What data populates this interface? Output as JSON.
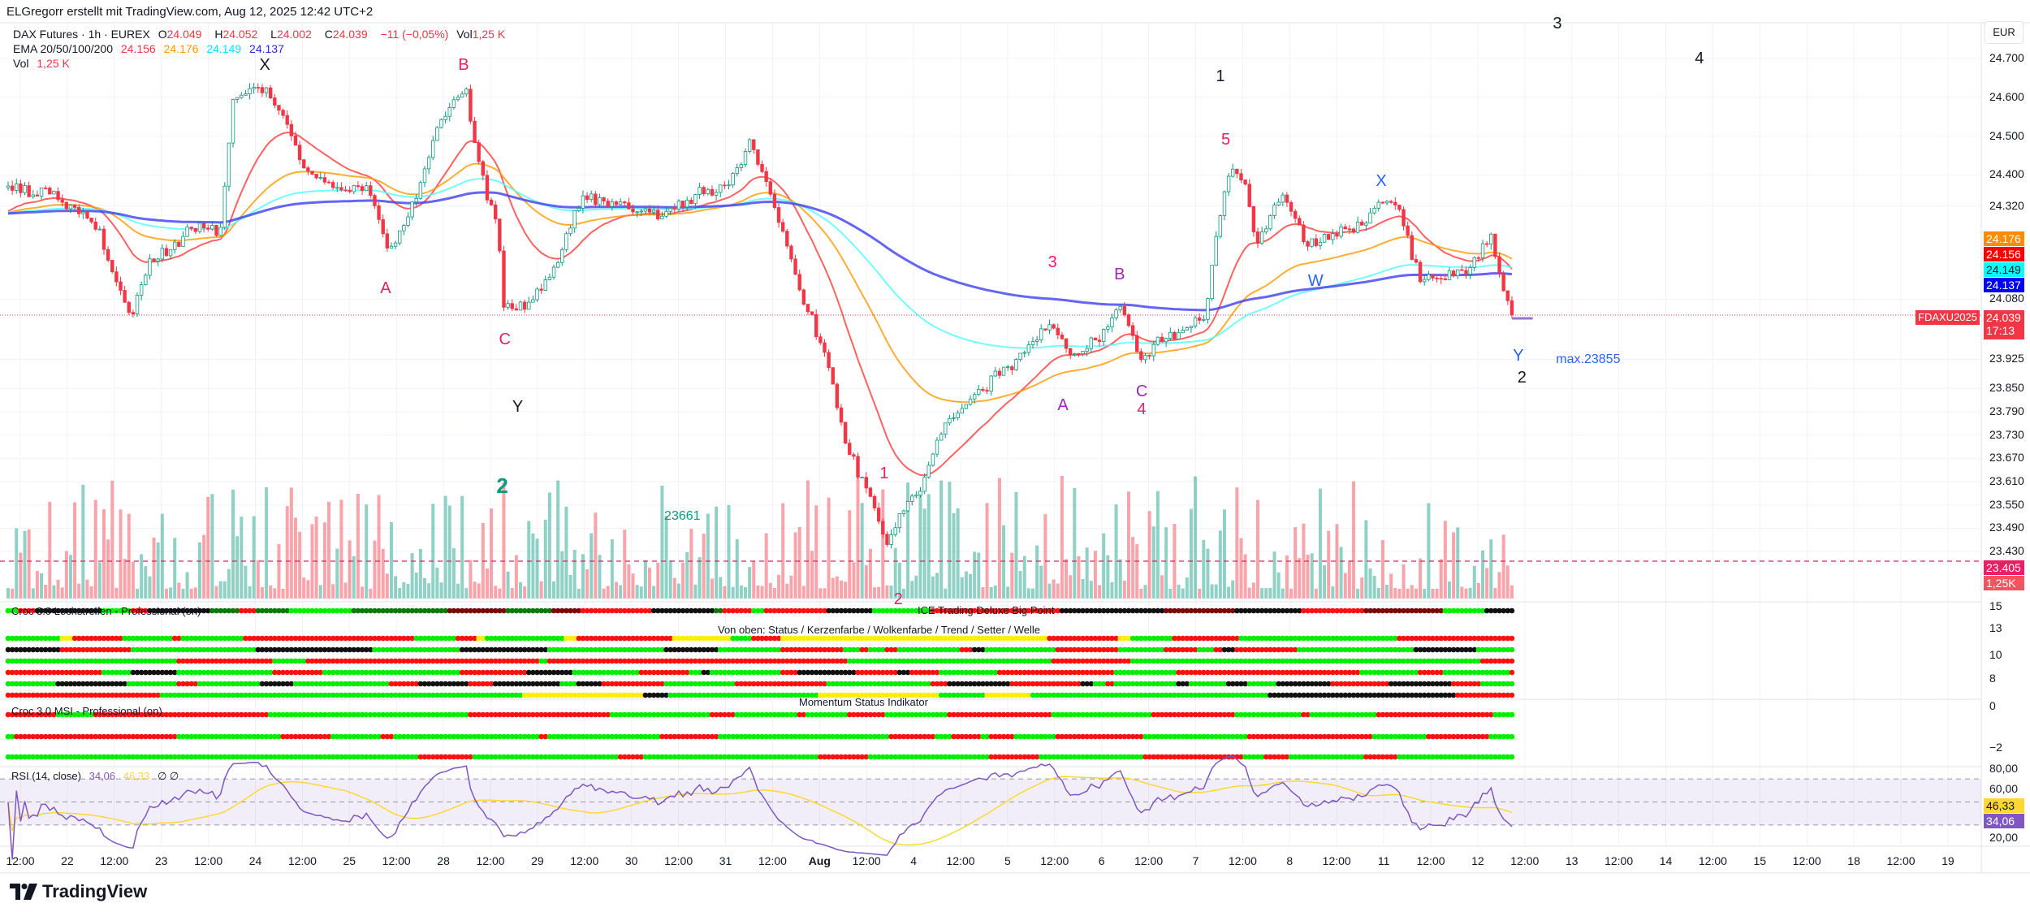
{
  "credit": "ELGregorr erstellt mit TradingView.com, Aug 12, 2025 12:42 UTC+2",
  "legend": {
    "symbol": "DAX Futures · 1h · EUREX",
    "o_label": "O",
    "o": "24.049",
    "h_label": "H",
    "h": "24.052",
    "l_label": "L",
    "l": "24.002",
    "c_label": "C",
    "c": "24.039",
    "change": "−11 (−0,05%)",
    "vol_label": "Vol",
    "vol": "1,25 K",
    "ema_label": "EMA 20/50/100/200",
    "ema_values": [
      "24.156",
      "24.176",
      "24.149",
      "24.137"
    ],
    "vol2_label": "Vol",
    "vol2": "1,25 K"
  },
  "colors": {
    "up": "#089981",
    "down": "#f23645",
    "ema": [
      "#ff3b3b",
      "#ff9800",
      "#4dfcfc",
      "#3f3ff0"
    ],
    "rsi": "#7e57c2",
    "rsi_ma": "#fdd835",
    "grid": "#f0f3fa",
    "dots": {
      "g": "#00ee00",
      "r": "#ff1010",
      "k": "#111111",
      "y": "#ffee00",
      "dg": "#0a7a0a",
      "dr": "#7a0a0a"
    }
  },
  "price_axis": {
    "currency": "EUR",
    "labels": [
      "24.700",
      "24.600",
      "24.500",
      "24.400",
      "24.320",
      "24.080",
      "23.925",
      "23.850",
      "23.790",
      "23.730",
      "23.670",
      "23.610",
      "23.550",
      "23.490",
      "23.430"
    ],
    "badges": {
      "ema50": "24.176",
      "ema20": "24.156",
      "ema100": "24.149",
      "ema200": "24.137",
      "last_price": "24.039",
      "countdown": "17:13",
      "symbol_tag": "FDAXU2025",
      "line_level": "23.405",
      "volume": "1,25K"
    }
  },
  "panes": {
    "loch_title": "Croc 3.0 Lochstreifen - Professional (on)",
    "ice_title": "ICE Trading Deluxe Big Point",
    "ice_subtitle": "Von oben: Status / Kerzenfarbe / Wolkenfarbe / Trend / Setter / Welle",
    "ice_axis": [
      "15",
      "13",
      "10",
      "8"
    ],
    "momentum_title": "Momentum Status Indikator",
    "msi_title": "Croc 3.0 MSI - Professional (on)",
    "momentum_axis": [
      "0",
      "−2"
    ],
    "rsi_title": "RSI (14, close)",
    "rsi_value": "34,06",
    "rsi_ma_value": "46,33",
    "rsi_extra": "∅ ∅",
    "rsi_axis": [
      "80,00",
      "60,00",
      "20,00"
    ]
  },
  "time_axis": [
    "12:00",
    "22",
    "12:00",
    "23",
    "12:00",
    "24",
    "12:00",
    "25",
    "12:00",
    "28",
    "12:00",
    "29",
    "12:00",
    "30",
    "12:00",
    "31",
    "12:00",
    "Aug",
    "12:00",
    "4",
    "12:00",
    "5",
    "12:00",
    "6",
    "12:00",
    "7",
    "12:00",
    "8",
    "12:00",
    "11",
    "12:00",
    "12",
    "12:00",
    "13",
    "12:00",
    "14",
    "12:00",
    "15",
    "12:00",
    "18",
    "12:00",
    "19"
  ],
  "annotations": [
    {
      "text": "X",
      "color": "#131722",
      "bar": 61.6,
      "price": 24684
    },
    {
      "text": "B",
      "color": "#e91e63",
      "bar": 109.3,
      "price": 24684
    },
    {
      "text": "A",
      "color": "#e91e63",
      "bar": 90.6,
      "price": 24107
    },
    {
      "text": "C",
      "color": "#e91e63",
      "bar": 119.2,
      "price": 23977
    },
    {
      "text": "Y",
      "color": "#131722",
      "bar": 122.3,
      "price": 23803
    },
    {
      "text": "2",
      "color": "#089981",
      "bar": 118.6,
      "price": 23600,
      "bold": true
    },
    {
      "text": "23661",
      "color": "#089981",
      "bar": 161.9,
      "price": 23520,
      "small": true
    },
    {
      "text": "1",
      "color": "#e91e63",
      "bar": 210.3,
      "price": 23630
    },
    {
      "text": "2",
      "color": "#e91e63",
      "bar": 213.7,
      "price": 23306
    },
    {
      "text": "3",
      "color": "#e91e63",
      "bar": 250.7,
      "price": 24174
    },
    {
      "text": "B",
      "color": "#9c27b0",
      "bar": 266.8,
      "price": 24144
    },
    {
      "text": "C",
      "color": "#9c27b0",
      "bar": 272.1,
      "price": 23843
    },
    {
      "text": "A",
      "color": "#9c27b0",
      "bar": 253.2,
      "price": 23807
    },
    {
      "text": "4",
      "color": "#e91e63",
      "bar": 272.1,
      "price": 23813
    },
    {
      "text": "1",
      "color": "#131722",
      "bar": 291,
      "price": 24654
    },
    {
      "text": "5",
      "color": "#e91e63",
      "bar": 292.3,
      "price": 24490
    },
    {
      "text": "X",
      "color": "#2962ff",
      "bar": 329.6,
      "price": 24384
    },
    {
      "text": "W",
      "color": "#2962ff",
      "bar": 313.9,
      "price": 24127
    },
    {
      "text": "Y",
      "color": "#2962ff",
      "bar": 362.5,
      "price": 23934
    },
    {
      "text": "2",
      "color": "#131722",
      "bar": 363.4,
      "price": 23877
    },
    {
      "text": "max.23855",
      "color": "#2962ff",
      "bar": 379.3,
      "price": 23924,
      "small": true
    },
    {
      "text": "3",
      "color": "#131722",
      "bar": 371.9,
      "price": 24791
    },
    {
      "text": "4",
      "color": "#131722",
      "bar": 406,
      "price": 24700
    }
  ],
  "chart_data": {
    "type": "candlestick",
    "bars": 362,
    "last_close": 24039,
    "line_level": 23405,
    "price_path": [
      [
        0,
        24367
      ],
      [
        10.5,
        24350
      ],
      [
        21.3,
        24267
      ],
      [
        29,
        24034
      ],
      [
        33.8,
        24167
      ],
      [
        44.6,
        24267
      ],
      [
        50.9,
        24250
      ],
      [
        54,
        24584
      ],
      [
        60,
        24634
      ],
      [
        64.8,
        24584
      ],
      [
        71,
        24417
      ],
      [
        78.8,
        24367
      ],
      [
        86.4,
        24367
      ],
      [
        91.3,
        24200
      ],
      [
        97.5,
        24317
      ],
      [
        103.7,
        24550
      ],
      [
        110,
        24617
      ],
      [
        112.4,
        24450
      ],
      [
        117.7,
        24250
      ],
      [
        119.2,
        24050
      ],
      [
        125.4,
        24067
      ],
      [
        131.6,
        24167
      ],
      [
        137.9,
        24350
      ],
      [
        147.2,
        24317
      ],
      [
        156.6,
        24300
      ],
      [
        165.8,
        24350
      ],
      [
        172,
        24367
      ],
      [
        178.3,
        24484
      ],
      [
        181.4,
        24400
      ],
      [
        186,
        24250
      ],
      [
        190.7,
        24084
      ],
      [
        197,
        23917
      ],
      [
        201.6,
        23683
      ],
      [
        206.3,
        23583
      ],
      [
        211,
        23450
      ],
      [
        214,
        23517
      ],
      [
        220.2,
        23617
      ],
      [
        223.3,
        23717
      ],
      [
        226.5,
        23783
      ],
      [
        234.3,
        23850
      ],
      [
        243.7,
        23950
      ],
      [
        250,
        24017
      ],
      [
        256.2,
        23934
      ],
      [
        260.8,
        23967
      ],
      [
        267,
        24067
      ],
      [
        271.7,
        23934
      ],
      [
        278,
        23984
      ],
      [
        287.3,
        24034
      ],
      [
        290.4,
        24267
      ],
      [
        293.6,
        24417
      ],
      [
        296.7,
        24384
      ],
      [
        299.8,
        24217
      ],
      [
        306,
        24350
      ],
      [
        312.3,
        24217
      ],
      [
        318.5,
        24250
      ],
      [
        324.7,
        24267
      ],
      [
        329.4,
        24334
      ],
      [
        334,
        24317
      ],
      [
        338.8,
        24134
      ],
      [
        343.4,
        24134
      ],
      [
        349.7,
        24150
      ],
      [
        355.9,
        24234
      ],
      [
        361,
        24039
      ]
    ]
  },
  "footer": {
    "brand": "TradingView"
  }
}
